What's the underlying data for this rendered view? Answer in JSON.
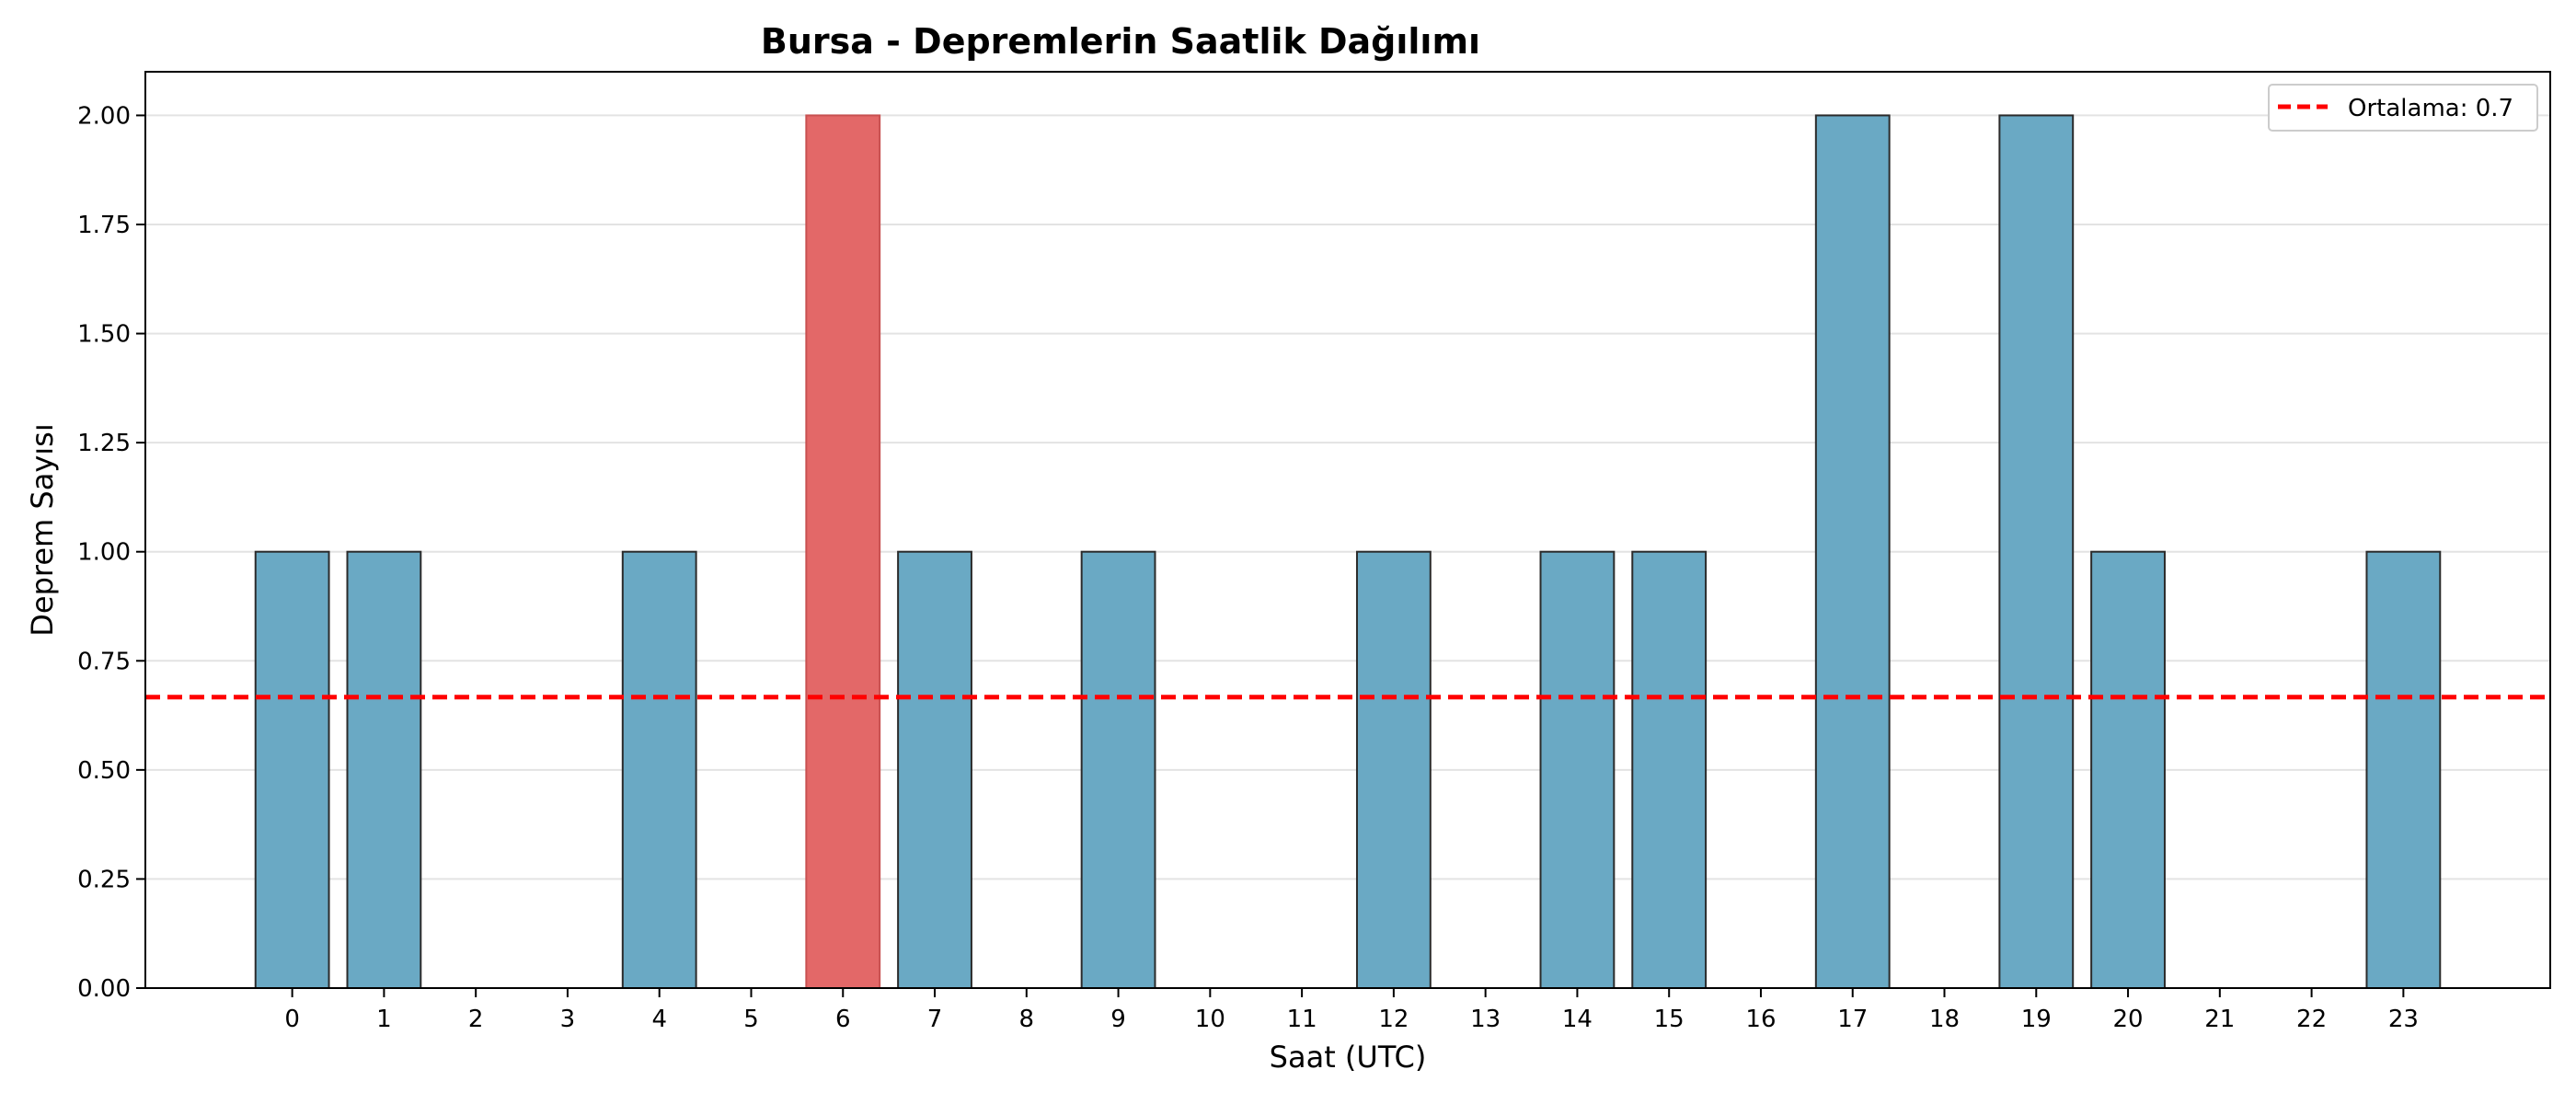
{
  "chart_data": {
    "type": "bar",
    "title": "Bursa - Depremlerin Saatlik Dağılımı",
    "xlabel": "Saat (UTC)",
    "ylabel": "Deprem Sayısı",
    "categories": [
      0,
      1,
      2,
      3,
      4,
      5,
      6,
      7,
      8,
      9,
      10,
      11,
      12,
      13,
      14,
      15,
      16,
      17,
      18,
      19,
      20,
      21,
      22,
      23
    ],
    "values": [
      1,
      1,
      0,
      0,
      1,
      0,
      2,
      1,
      0,
      1,
      0,
      0,
      1,
      0,
      1,
      1,
      0,
      2,
      0,
      2,
      1,
      0,
      0,
      1
    ],
    "highlight_category": 6,
    "xlim": [
      -1.6,
      24.6
    ],
    "ylim": [
      0,
      2.1
    ],
    "yticks": [
      0.0,
      0.25,
      0.5,
      0.75,
      1.0,
      1.25,
      1.5,
      1.75,
      2.0
    ],
    "ytick_labels": [
      "0.00",
      "0.25",
      "0.50",
      "0.75",
      "1.00",
      "1.25",
      "1.50",
      "1.75",
      "2.00"
    ],
    "mean_line": {
      "value": 0.6667,
      "label": "Ortalama: 0.7",
      "color": "#ff0000",
      "style": "dashed"
    },
    "legend": {
      "position": "top-right",
      "entries": [
        "Ortalama: 0.7"
      ]
    },
    "grid": {
      "y": true,
      "x": false
    },
    "colors": {
      "bar": "#6aa9c4",
      "bar_highlight": "#e36868",
      "bar_edge": "#2b2b2b",
      "mean": "#ff0000"
    }
  }
}
